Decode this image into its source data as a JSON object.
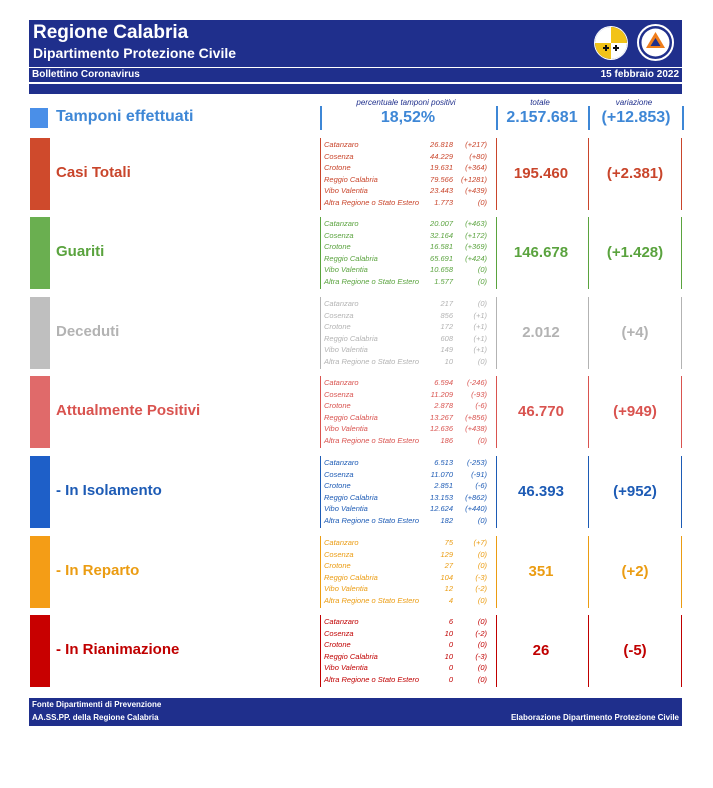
{
  "header": {
    "title": "Regione Calabria",
    "subtitle": "Dipartimento Protezione Civile",
    "bulletin": "Bollettino Coronavirus",
    "date": "15 febbraio 2022"
  },
  "columns": {
    "percent_label": "percentuale tamponi positivi",
    "total_label": "totale",
    "change_label": "variazione"
  },
  "tamponi": {
    "label": "Tamponi effettuati",
    "percent": "18,52%",
    "total": "2.157.681",
    "change": "(+12.853)",
    "color": "#3e87d6"
  },
  "sections": [
    {
      "key": "casi",
      "label": "Casi Totali",
      "color": "#c9452b",
      "bar_color": "#cf4a2c",
      "total": "195.460",
      "change": "(+2.381)",
      "rows": [
        {
          "name": "Catanzaro",
          "value": "26.818",
          "delta": "(+217)"
        },
        {
          "name": "Cosenza",
          "value": "44.229",
          "delta": "(+80)"
        },
        {
          "name": "Crotone",
          "value": "19.631",
          "delta": "(+364)"
        },
        {
          "name": "Reggio Calabria",
          "value": "79.566",
          "delta": "(+1281)"
        },
        {
          "name": "Vibo Valentia",
          "value": "23.443",
          "delta": "(+439)"
        },
        {
          "name": "Altra Regione o Stato Estero",
          "value": "1.773",
          "delta": "(0)"
        }
      ]
    },
    {
      "key": "guariti",
      "label": "Guariti",
      "color": "#5aa33e",
      "bar_color": "#6aaf50",
      "total": "146.678",
      "change": "(+1.428)",
      "rows": [
        {
          "name": "Catanzaro",
          "value": "20.007",
          "delta": "(+463)"
        },
        {
          "name": "Cosenza",
          "value": "32.164",
          "delta": "(+172)"
        },
        {
          "name": "Crotone",
          "value": "16.581",
          "delta": "(+369)"
        },
        {
          "name": "Reggio Calabria",
          "value": "65.691",
          "delta": "(+424)"
        },
        {
          "name": "Vibo Valentia",
          "value": "10.658",
          "delta": "(0)"
        },
        {
          "name": "Altra Regione o Stato Estero",
          "value": "1.577",
          "delta": "(0)"
        }
      ]
    },
    {
      "key": "deceduti",
      "label": "Deceduti",
      "color": "#b3b3b3",
      "bar_color": "#bfbfbf",
      "total": "2.012",
      "change": "(+4)",
      "rows": [
        {
          "name": "Catanzaro",
          "value": "217",
          "delta": "(0)"
        },
        {
          "name": "Cosenza",
          "value": "856",
          "delta": "(+1)"
        },
        {
          "name": "Crotone",
          "value": "172",
          "delta": "(+1)"
        },
        {
          "name": "Reggio Calabria",
          "value": "608",
          "delta": "(+1)"
        },
        {
          "name": "Vibo Valentia",
          "value": "149",
          "delta": "(+1)"
        },
        {
          "name": "Altra Regione o Stato Estero",
          "value": "10",
          "delta": "(0)"
        }
      ]
    },
    {
      "key": "positivi",
      "label": "Attualmente Positivi",
      "color": "#d9534f",
      "bar_color": "#e06a6a",
      "total": "46.770",
      "change": "(+949)",
      "rows": [
        {
          "name": "Catanzaro",
          "value": "6.594",
          "delta": "(-246)"
        },
        {
          "name": "Cosenza",
          "value": "11.209",
          "delta": "(-93)"
        },
        {
          "name": "Crotone",
          "value": "2.878",
          "delta": "(-6)"
        },
        {
          "name": "Reggio Calabria",
          "value": "13.267",
          "delta": "(+856)"
        },
        {
          "name": "Vibo Valentia",
          "value": "12.636",
          "delta": "(+438)"
        },
        {
          "name": "Altra Regione o Stato Estero",
          "value": "186",
          "delta": "(0)"
        }
      ]
    },
    {
      "key": "isolamento",
      "label": "- In Isolamento",
      "color": "#1d5bb5",
      "bar_color": "#1e5fc8",
      "total": "46.393",
      "change": "(+952)",
      "rows": [
        {
          "name": "Catanzaro",
          "value": "6.513",
          "delta": "(-253)"
        },
        {
          "name": "Cosenza",
          "value": "11.070",
          "delta": "(-91)"
        },
        {
          "name": "Crotone",
          "value": "2.851",
          "delta": "(-6)"
        },
        {
          "name": "Reggio Calabria",
          "value": "13.153",
          "delta": "(+862)"
        },
        {
          "name": "Vibo Valentia",
          "value": "12.624",
          "delta": "(+440)"
        },
        {
          "name": "Altra Regione o Stato Estero",
          "value": "182",
          "delta": "(0)"
        }
      ]
    },
    {
      "key": "reparto",
      "label": "- In Reparto",
      "color": "#eb9c12",
      "bar_color": "#f49d16",
      "total": "351",
      "change": "(+2)",
      "rows": [
        {
          "name": "Catanzaro",
          "value": "75",
          "delta": "(+7)"
        },
        {
          "name": "Cosenza",
          "value": "129",
          "delta": "(0)"
        },
        {
          "name": "Crotone",
          "value": "27",
          "delta": "(0)"
        },
        {
          "name": "Reggio Calabria",
          "value": "104",
          "delta": "(-3)"
        },
        {
          "name": "Vibo Valentia",
          "value": "12",
          "delta": "(-2)"
        },
        {
          "name": "Altra Regione o Stato Estero",
          "value": "4",
          "delta": "(0)"
        }
      ]
    },
    {
      "key": "rianimazione",
      "label": "- In Rianimazione",
      "color": "#c00000",
      "bar_color": "#c80000",
      "total": "26",
      "change": "(-5)",
      "rows": [
        {
          "name": "Catanzaro",
          "value": "6",
          "delta": "(0)"
        },
        {
          "name": "Cosenza",
          "value": "10",
          "delta": "(-2)"
        },
        {
          "name": "Crotone",
          "value": "0",
          "delta": "(0)"
        },
        {
          "name": "Reggio Calabria",
          "value": "10",
          "delta": "(-3)"
        },
        {
          "name": "Vibo Valentia",
          "value": "0",
          "delta": "(0)"
        },
        {
          "name": "Altra Regione o Stato Estero",
          "value": "0",
          "delta": "(0)"
        }
      ]
    }
  ],
  "footer": {
    "source_line1": "Fonte Dipartimenti di Prevenzione",
    "source_line2": "AA.SS.PP.  della Regione Calabria",
    "credit": "Elaborazione Dipartimento Protezione Civile"
  },
  "logos": [
    {
      "name": "regione-calabria-emblem"
    },
    {
      "name": "protezione-civile-emblem"
    }
  ]
}
